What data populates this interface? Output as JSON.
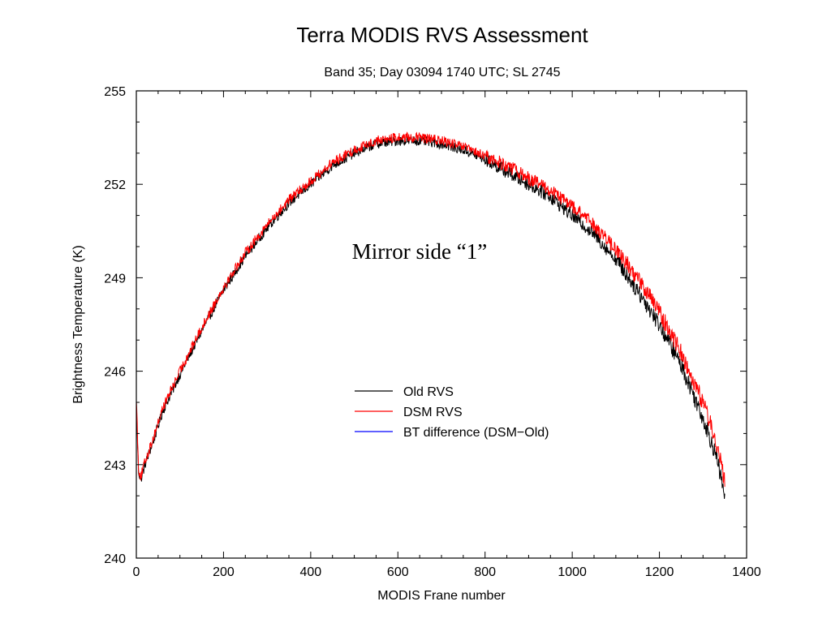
{
  "chart_data": {
    "type": "line",
    "title": "Terra MODIS RVS Assessment",
    "subtitle": "Band 35; Day 03094 1740 UTC; SL 2745",
    "xlabel": "MODIS Frane number",
    "ylabel": "Brightness Temperature (K)",
    "xlim": [
      0,
      1400
    ],
    "ylim": [
      240,
      255
    ],
    "xticks": [
      0,
      200,
      400,
      600,
      800,
      1000,
      1200,
      1400
    ],
    "yticks": [
      240,
      243,
      246,
      249,
      252,
      255
    ],
    "grid": false,
    "legend_placement": "center",
    "annotation": "Mirror side “1”",
    "series": [
      {
        "name": "Old RVS",
        "color": "#000000",
        "x": [
          0,
          5,
          10,
          20,
          40,
          60,
          100,
          150,
          200,
          250,
          300,
          350,
          400,
          450,
          500,
          550,
          600,
          650,
          700,
          750,
          800,
          850,
          900,
          950,
          1000,
          1050,
          1100,
          1150,
          1200,
          1250,
          1300,
          1330,
          1350
        ],
        "y": [
          244.8,
          242.8,
          242.5,
          243.0,
          243.8,
          244.7,
          245.9,
          247.3,
          248.6,
          249.7,
          250.6,
          251.4,
          252.0,
          252.6,
          253.0,
          253.3,
          253.4,
          253.4,
          253.3,
          253.1,
          252.8,
          252.4,
          252.0,
          251.6,
          251.0,
          250.4,
          249.6,
          248.6,
          247.5,
          246.2,
          244.5,
          243.3,
          242.0
        ]
      },
      {
        "name": "DSM RVS",
        "color": "#ff0000",
        "x": [
          0,
          5,
          10,
          20,
          40,
          60,
          100,
          150,
          200,
          250,
          300,
          350,
          400,
          450,
          500,
          550,
          600,
          650,
          700,
          750,
          800,
          850,
          900,
          950,
          1000,
          1050,
          1100,
          1150,
          1200,
          1250,
          1300,
          1330,
          1350
        ],
        "y": [
          245.2,
          242.9,
          242.6,
          243.1,
          243.9,
          244.8,
          246.0,
          247.4,
          248.7,
          249.8,
          250.7,
          251.5,
          252.1,
          252.7,
          253.1,
          253.4,
          253.5,
          253.5,
          253.4,
          253.2,
          252.9,
          252.6,
          252.2,
          251.8,
          251.3,
          250.7,
          249.9,
          249.0,
          247.9,
          246.6,
          245.0,
          243.8,
          242.4
        ]
      },
      {
        "name": "BT difference (DSM−Old)",
        "color": "#0000ff",
        "x": [],
        "y": []
      }
    ]
  }
}
